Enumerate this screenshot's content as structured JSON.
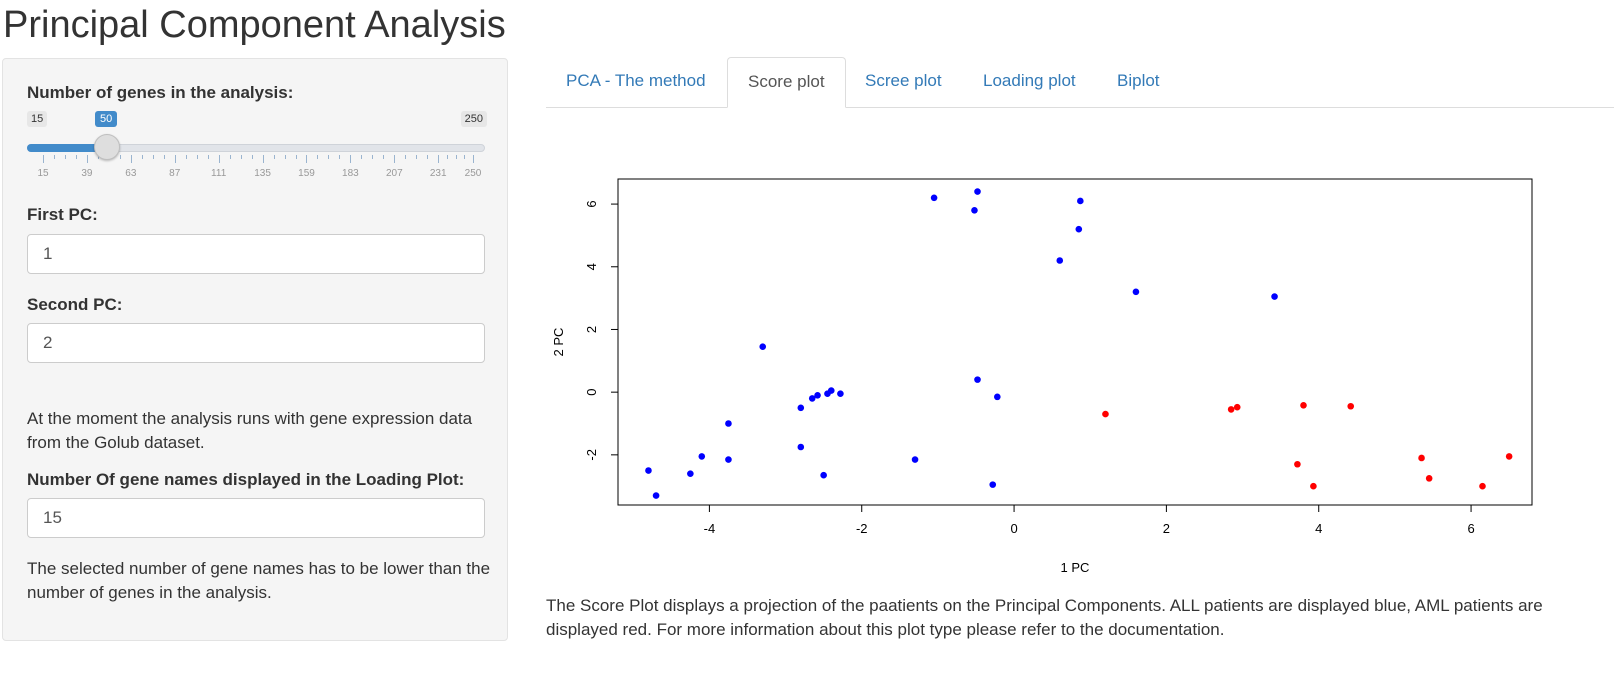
{
  "page": {
    "title": "Principal Component Analysis"
  },
  "sidebar": {
    "genes_label": "Number of genes in the analysis:",
    "slider": {
      "min": 15,
      "max": 250,
      "value": 50,
      "min_label": "15",
      "max_label": "250",
      "value_label": "50",
      "ticks": [
        "15",
        "39",
        "63",
        "87",
        "111",
        "135",
        "159",
        "183",
        "207",
        "231",
        "250"
      ]
    },
    "first_pc_label": "First PC:",
    "first_pc_value": "1",
    "second_pc_label": "Second PC:",
    "second_pc_value": "2",
    "info_text": "At the moment the analysis runs with gene expression data from the Golub dataset.",
    "gene_names_label": "Number Of gene names displayed in the Loading Plot:",
    "gene_names_value": "15",
    "note_text": "The selected number of gene names has to be lower than the number of genes in the analysis."
  },
  "tabs": [
    {
      "label": "PCA - The method",
      "active": false
    },
    {
      "label": "Score plot",
      "active": true
    },
    {
      "label": "Scree plot",
      "active": false
    },
    {
      "label": "Loading plot",
      "active": false
    },
    {
      "label": "Biplot",
      "active": false
    }
  ],
  "colors": {
    "all": "#0000ff",
    "aml": "#ff0000",
    "accent": "#428bca",
    "link": "#337ab7"
  },
  "chart_data": {
    "type": "scatter",
    "xlabel": "1 PC",
    "ylabel": "2 PC",
    "xlim": [
      -5.2,
      6.8
    ],
    "ylim": [
      -3.6,
      6.8
    ],
    "xticks": [
      -4,
      -2,
      0,
      2,
      4,
      6
    ],
    "yticks": [
      -2,
      0,
      2,
      4,
      6
    ],
    "xtick_labels": [
      "-4",
      "-2",
      "0",
      "2",
      "4",
      "6"
    ],
    "ytick_labels": [
      "-2",
      "0",
      "2",
      "4",
      "6"
    ],
    "series": [
      {
        "color": "#0000ff",
        "points": [
          [
            -4.8,
            -2.5
          ],
          [
            -4.7,
            -3.3
          ],
          [
            -4.25,
            -2.6
          ],
          [
            -4.1,
            -2.05
          ],
          [
            -3.75,
            -1.0
          ],
          [
            -3.75,
            -2.15
          ],
          [
            -3.3,
            1.45
          ],
          [
            -2.8,
            -0.5
          ],
          [
            -2.8,
            -1.75
          ],
          [
            -2.65,
            -0.2
          ],
          [
            -2.58,
            -0.1
          ],
          [
            -2.5,
            -2.65
          ],
          [
            -2.45,
            -0.05
          ],
          [
            -2.4,
            0.05
          ],
          [
            -2.28,
            -0.05
          ],
          [
            -1.3,
            -2.15
          ],
          [
            -1.05,
            6.2
          ],
          [
            -0.52,
            5.8
          ],
          [
            -0.48,
            6.4
          ],
          [
            -0.48,
            0.4
          ],
          [
            -0.28,
            -2.95
          ],
          [
            -0.22,
            -0.15
          ],
          [
            0.6,
            4.2
          ],
          [
            0.85,
            5.2
          ],
          [
            0.87,
            6.1
          ],
          [
            1.6,
            3.2
          ],
          [
            3.42,
            3.05
          ]
        ]
      },
      {
        "color": "#ff0000",
        "points": [
          [
            1.2,
            -0.7
          ],
          [
            2.85,
            -0.55
          ],
          [
            2.93,
            -0.48
          ],
          [
            3.72,
            -2.3
          ],
          [
            3.8,
            -0.42
          ],
          [
            3.93,
            -3.0
          ],
          [
            4.42,
            -0.45
          ],
          [
            5.35,
            -2.1
          ],
          [
            5.45,
            -2.75
          ],
          [
            6.15,
            -3.0
          ],
          [
            6.5,
            -2.05
          ]
        ]
      }
    ],
    "grid": false,
    "legend": "none"
  },
  "caption": "The Score Plot displays a projection of the paatients on the Principal Components. ALL patients are displayed blue, AML patients are displayed red. For more information about this plot type please refer to the documentation."
}
